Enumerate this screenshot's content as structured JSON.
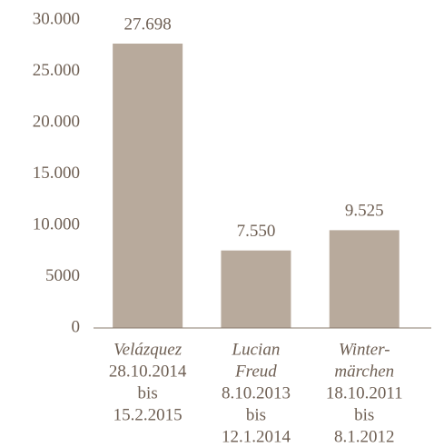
{
  "chart_data": {
    "type": "bar",
    "categories": [
      [
        "Velázquez"
      ],
      [
        "Lucian",
        "Freud"
      ],
      [
        "Winter-",
        "märchen"
      ]
    ],
    "dates": [
      [
        "28.10.2014",
        "bis",
        "15.2.2015"
      ],
      [
        "8.10.2013",
        "bis",
        "12.1.2014"
      ],
      [
        "18.10.2011",
        "bis",
        "8.1.2012"
      ]
    ],
    "values": [
      27698,
      7550,
      9525
    ],
    "value_labels": [
      "27.698",
      "7.550",
      "9.525"
    ],
    "color": "#b8aa9c",
    "ylim": [
      0,
      30000
    ],
    "yticks": [
      0,
      5000,
      {
        "value": 10000,
        "label": "10.000"
      },
      {
        "value": 15000,
        "label": "15.000"
      },
      {
        "value": 20000,
        "label": "20.000"
      },
      {
        "value": 25000,
        "label": "25.000"
      },
      {
        "value": 30000,
        "label": "30.000"
      }
    ],
    "grid": false
  }
}
